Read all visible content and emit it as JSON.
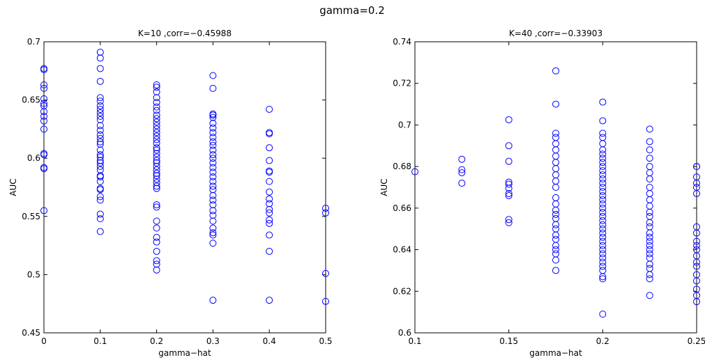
{
  "figure_title": "gamma=0.2",
  "chart_data": [
    {
      "type": "scatter",
      "title": "K=10 ,corr=−0.45988",
      "xlabel": "gamma−hat",
      "ylabel": "AUC",
      "xlim": [
        0,
        0.5
      ],
      "ylim": [
        0.45,
        0.7
      ],
      "xticks": [
        0,
        0.1,
        0.2,
        0.3,
        0.4,
        0.5
      ],
      "xtick_labels": [
        "0",
        "0.1",
        "0.2",
        "0.3",
        "0.4",
        "0.5"
      ],
      "yticks": [
        0.45,
        0.5,
        0.55,
        0.6,
        0.65,
        0.7
      ],
      "ytick_labels": [
        "0.45",
        "0.5",
        "0.55",
        "0.6",
        "0.65",
        "0.7"
      ],
      "marker_color": "#0000ff",
      "grid": false,
      "series": [
        {
          "x": 0,
          "y": [
            0.677,
            0.676,
            0.663,
            0.66,
            0.651,
            0.647,
            0.645,
            0.64,
            0.636,
            0.632,
            0.625,
            0.604,
            0.603,
            0.592,
            0.591,
            0.555
          ]
        },
        {
          "x": 0.1,
          "y": [
            0.691,
            0.686,
            0.677,
            0.666,
            0.652,
            0.649,
            0.645,
            0.642,
            0.639,
            0.636,
            0.633,
            0.628,
            0.624,
            0.62,
            0.617,
            0.614,
            0.612,
            0.607,
            0.603,
            0.601,
            0.598,
            0.596,
            0.593,
            0.59,
            0.585,
            0.584,
            0.58,
            0.574,
            0.573,
            0.567,
            0.564,
            0.552,
            0.548,
            0.537
          ]
        },
        {
          "x": 0.2,
          "y": [
            0.663,
            0.661,
            0.657,
            0.652,
            0.648,
            0.644,
            0.641,
            0.637,
            0.634,
            0.631,
            0.628,
            0.625,
            0.622,
            0.619,
            0.616,
            0.613,
            0.609,
            0.607,
            0.604,
            0.601,
            0.598,
            0.596,
            0.593,
            0.59,
            0.587,
            0.585,
            0.582,
            0.579,
            0.576,
            0.574,
            0.56,
            0.558,
            0.546,
            0.54,
            0.532,
            0.528,
            0.52,
            0.512,
            0.509,
            0.504
          ]
        },
        {
          "x": 0.3,
          "y": [
            0.671,
            0.66,
            0.638,
            0.637,
            0.635,
            0.63,
            0.626,
            0.622,
            0.618,
            0.614,
            0.611,
            0.607,
            0.603,
            0.6,
            0.596,
            0.592,
            0.588,
            0.584,
            0.58,
            0.576,
            0.573,
            0.568,
            0.564,
            0.56,
            0.555,
            0.551,
            0.546,
            0.54,
            0.536,
            0.534,
            0.527,
            0.478
          ]
        },
        {
          "x": 0.4,
          "y": [
            0.642,
            0.622,
            0.621,
            0.609,
            0.598,
            0.589,
            0.588,
            0.58,
            0.571,
            0.565,
            0.561,
            0.556,
            0.553,
            0.547,
            0.544,
            0.534,
            0.52,
            0.478
          ]
        },
        {
          "x": 0.5,
          "y": [
            0.557,
            0.553,
            0.501,
            0.477
          ]
        }
      ]
    },
    {
      "type": "scatter",
      "title": "K=40 ,corr=−0.33903",
      "xlabel": "gamma−hat",
      "ylabel": "AUC",
      "xlim": [
        0.1,
        0.25
      ],
      "ylim": [
        0.6,
        0.74
      ],
      "xticks": [
        0.1,
        0.15,
        0.2,
        0.25
      ],
      "xtick_labels": [
        "0.1",
        "0.15",
        "0.2",
        "0.25"
      ],
      "yticks": [
        0.6,
        0.62,
        0.64,
        0.66,
        0.68,
        0.7,
        0.72,
        0.74
      ],
      "ytick_labels": [
        "0.6",
        "0.62",
        "0.64",
        "0.66",
        "0.68",
        "0.7",
        "0.72",
        "0.74"
      ],
      "marker_color": "#0000ff",
      "grid": false,
      "series": [
        {
          "x": 0.1,
          "y": [
            0.6775
          ]
        },
        {
          "x": 0.125,
          "y": [
            0.6835,
            0.6785,
            0.677,
            0.672
          ]
        },
        {
          "x": 0.15,
          "y": [
            0.7025,
            0.69,
            0.6825,
            0.6725,
            0.6715,
            0.6695,
            0.667,
            0.666,
            0.6545,
            0.653
          ]
        },
        {
          "x": 0.175,
          "y": [
            0.726,
            0.71,
            0.696,
            0.694,
            0.691,
            0.688,
            0.685,
            0.682,
            0.679,
            0.676,
            0.673,
            0.67,
            0.665,
            0.662,
            0.659,
            0.657,
            0.655,
            0.652,
            0.65,
            0.647,
            0.645,
            0.642,
            0.64,
            0.638,
            0.635,
            0.63
          ]
        },
        {
          "x": 0.2,
          "y": [
            0.711,
            0.702,
            0.696,
            0.694,
            0.691,
            0.688,
            0.686,
            0.684,
            0.682,
            0.68,
            0.678,
            0.676,
            0.674,
            0.672,
            0.67,
            0.668,
            0.666,
            0.664,
            0.662,
            0.66,
            0.658,
            0.656,
            0.654,
            0.652,
            0.65,
            0.648,
            0.646,
            0.644,
            0.642,
            0.64,
            0.638,
            0.636,
            0.634,
            0.632,
            0.63,
            0.627,
            0.626,
            0.609
          ]
        },
        {
          "x": 0.225,
          "y": [
            0.698,
            0.692,
            0.688,
            0.684,
            0.68,
            0.677,
            0.674,
            0.67,
            0.667,
            0.664,
            0.661,
            0.658,
            0.656,
            0.653,
            0.651,
            0.648,
            0.646,
            0.644,
            0.642,
            0.64,
            0.638,
            0.636,
            0.633,
            0.631,
            0.628,
            0.626,
            0.618
          ]
        },
        {
          "x": 0.25,
          "y": [
            0.68,
            0.68,
            0.675,
            0.672,
            0.67,
            0.667,
            0.651,
            0.648,
            0.644,
            0.642,
            0.64,
            0.637,
            0.634,
            0.632,
            0.628,
            0.625,
            0.621,
            0.618,
            0.615
          ]
        }
      ]
    }
  ]
}
